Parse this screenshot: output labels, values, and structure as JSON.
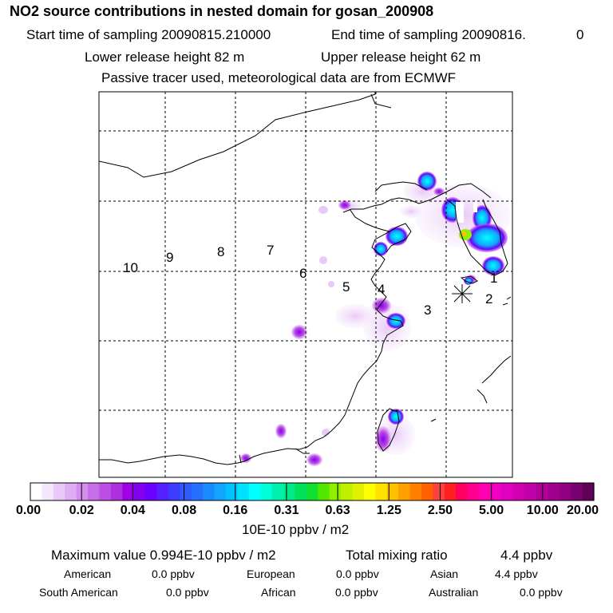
{
  "header": {
    "title": "NO2 source contributions in nested domain for gosan_200908",
    "start_label": "Start time of sampling 20090815.210000",
    "end_label": "End time of sampling 20090816.",
    "end_suffix": "0",
    "lower_label": "Lower release height   82 m",
    "upper_label": "Upper release height   62 m",
    "tracer_note": "Passive tracer used, meteorological data are from ECMWF"
  },
  "chart_data": {
    "type": "heatmap",
    "title": "NO2 source contributions in nested domain for gosan_200908",
    "units": "10E-10 ppbv / m2",
    "colorbar_ticks": [
      "0.00",
      "0.02",
      "0.04",
      "0.08",
      "0.16",
      "0.31",
      "0.63",
      "1.25",
      "2.50",
      "5.00",
      "10.00",
      "20.00"
    ],
    "colorbar_colors": [
      "#ffffff",
      "#f4e6fb",
      "#e9c9f7",
      "#dfadf3",
      "#d48fee",
      "#c86de8",
      "#bb4fe3",
      "#ae2fde",
      "#a000e8",
      "#8400f0",
      "#6a00ff",
      "#5520ff",
      "#3c3cff",
      "#2f5aff",
      "#2570ff",
      "#1a8aff",
      "#10a5ff",
      "#00c0ff",
      "#00e0ff",
      "#00ffff",
      "#00ffd9",
      "#00f0b0",
      "#00e887",
      "#00e05a",
      "#10e030",
      "#50e800",
      "#90f000",
      "#c0f000",
      "#e0f000",
      "#ffff00",
      "#ffe000",
      "#ffc000",
      "#ffa000",
      "#ff8000",
      "#ff6000",
      "#ff4040",
      "#ff2020",
      "#ff0060",
      "#ff0090",
      "#ff00b0",
      "#f000c0",
      "#e000c0",
      "#d000b0",
      "#c000a8",
      "#b00098",
      "#a00090",
      "#900080",
      "#780070",
      "#600058"
    ],
    "legend_labels": [
      "1",
      "2",
      "3",
      "4",
      "5",
      "6",
      "7",
      "8",
      "9",
      "10"
    ],
    "stats": {
      "maximum": "Maximum value  0.994E-10 ppbv / m2",
      "total_label": "Total mixing ratio",
      "total_value": "4.4 ppbv"
    },
    "regions": [
      {
        "name": "American",
        "value": "0.0 ppbv"
      },
      {
        "name": "European",
        "value": "0.0 ppbv"
      },
      {
        "name": "Asian",
        "value": "4.4 ppbv"
      },
      {
        "name": "South American",
        "value": "0.0 ppbv"
      },
      {
        "name": "African",
        "value": "0.0 ppbv"
      },
      {
        "name": "Australian",
        "value": "0.0 ppbv"
      }
    ]
  },
  "colors": {
    "frame": "#000000",
    "grid": "#000000",
    "coast": "#000000"
  }
}
